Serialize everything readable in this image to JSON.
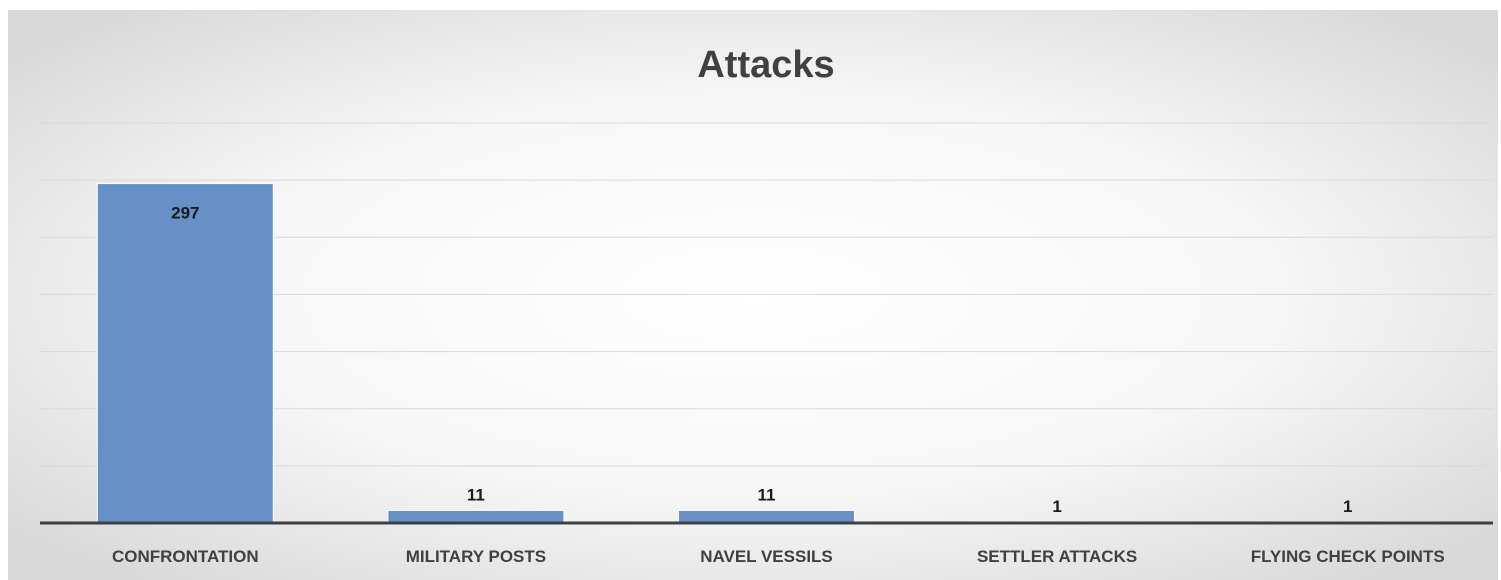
{
  "chart_data": {
    "type": "bar",
    "title": "Attacks",
    "xlabel": "",
    "ylabel": "",
    "categories": [
      "CONFRONTATION",
      "MILITARY POSTS",
      "NAVEL VESSILS",
      "SETTLER ATTACKS",
      "FLYING CHECK POINTS"
    ],
    "values": [
      297,
      11,
      11,
      1,
      1
    ],
    "ylim": [
      0,
      350
    ],
    "grid": true,
    "legend": "none",
    "data_labels": true,
    "colors": {
      "bar": "#6690c6",
      "bar_edge": "#ffffff",
      "grid": "#d9d9d9",
      "axis": "#404040"
    }
  }
}
